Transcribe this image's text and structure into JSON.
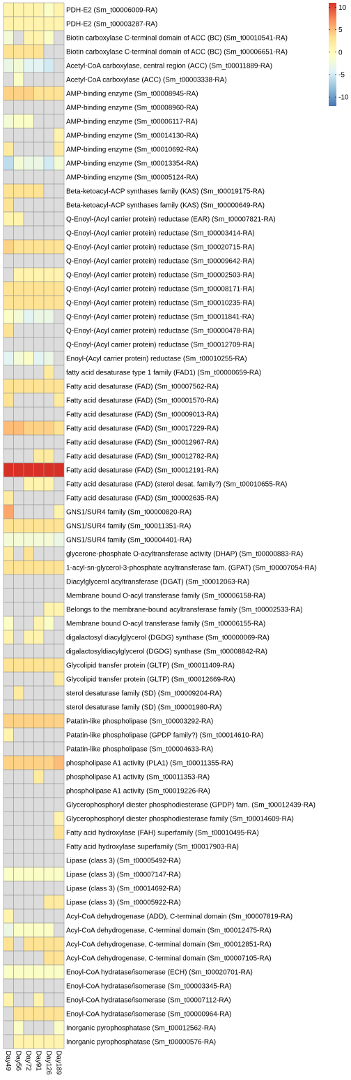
{
  "chart_data": {
    "type": "heatmap",
    "columns": [
      "Day49",
      "Day56",
      "Day72",
      "Day91",
      "Day126",
      "Day189"
    ],
    "rows": [
      "PDH-E2 (Sm_t00006009-RA)",
      "PDH-E2 (Sm_t00003287-RA)",
      "Biotin carboxylase C-terminal domain of ACC (BC) (Sm_t00010541-RA)",
      "Biotin carboxylase C-terminal domain of ACC (BC) (Sm_t00006651-RA)",
      "Acetyl-CoA carboxylase, central region (ACC) (Sm_t00011889-RA)",
      "Acetyl-CoA carboxylase (ACC) (Sm_t00003338-RA)",
      "AMP-binding enzyme (Sm_t00008945-RA)",
      "AMP-binding enzyme (Sm_t00008960-RA)",
      "AMP-binding enzyme (Sm_t00006117-RA)",
      "AMP-binding enzyme (Sm_t00014130-RA)",
      "AMP-binding enzyme (Sm_t00010692-RA)",
      "AMP-binding enzyme (Sm_t00013354-RA)",
      "AMP-binding enzyme (Sm_t00005124-RA)",
      "Beta-ketoacyl-ACP synthases family (KAS) (Sm_t00019175-RA)",
      "Beta-ketoacyl-ACP synthases family (KAS) (Sm_t00000649-RA)",
      "Q-Enoyl-(Acyl carrier protein) reductase (EAR) (Sm_t00007821-RA)",
      "Q-Enoyl-(Acyl carrier protein) reductase (Sm_t00003414-RA)",
      "Q-Enoyl-(Acyl carrier protein) reductase (Sm_t00020715-RA)",
      "Q-Enoyl-(Acyl carrier protein) reductase (Sm_t00009642-RA)",
      "Q-Enoyl-(Acyl carrier protein) reductase (Sm_t00002503-RA)",
      "Q-Enoyl-(Acyl carrier protein) reductase (Sm_t00008171-RA)",
      "Q-Enoyl-(Acyl carrier protein) reductase (Sm_t00010235-RA)",
      "Q-Enoyl-(Acyl carrier protein) reductase (Sm_t00011841-RA)",
      "Q-Enoyl-(Acyl carrier protein) reductase (Sm_t00000478-RA)",
      "Q-Enoyl-(Acyl carrier protein) reductase (Sm_t00012709-RA)",
      "Enoyl-(Acyl carrier protein) reductase (Sm_t00010255-RA)",
      "fatty acid desaturase type 1 family (FAD1) (Sm_t00000659-RA)",
      "Fatty acid desaturase (FAD) (Sm_t00007562-RA)",
      "Fatty acid desaturase (FAD) (Sm_t00001570-RA)",
      "Fatty acid desaturase (FAD) (Sm_t00009013-RA)",
      "Fatty acid desaturase (FAD) (Sm_t00017229-RA)",
      "Fatty acid desaturase (FAD) (Sm_t00012967-RA)",
      "Fatty acid desaturase (FAD) (Sm_t00012782-RA)",
      "Fatty acid desaturase (FAD) (Sm_t00012191-RA)",
      "Fatty acid desaturase (FAD) (sterol desat. family?) (Sm_t00010655-RA)",
      "Fatty acid desaturase (FAD) (Sm_t00002635-RA)",
      "GNS1/SUR4 family (Sm_t00000820-RA)",
      "GNS1/SUR4 family (Sm_t00011351-RA)",
      "GNS1/SUR4 family (Sm_t00004401-RA)",
      "glycerone-phosphate O-acyltransferase activity (DHAP) (Sm_t00000883-RA)",
      "1-acyl-sn-glycerol-3-phosphate acyltransferase fam. (GPAT) (Sm_t00007054-RA)",
      "Diacylglycerol acyltransferase (DGAT) (Sm_t00012063-RA)",
      "Membrane bound O-acyl transferase family (Sm_t00006158-RA)",
      "Belongs to the membrane-bound acyltransferase family (Sm_t00002533-RA)",
      "Membrane bound O-acyl transferase family (Sm_t00006155-RA)",
      "digalactosyl diacylglycerol (DGDG) synthase (Sm_t00000069-RA)",
      "digalactosyldiacylglycerol (DGDG) synthase (Sm_t00008842-RA)",
      "Glycolipid transfer protein (GLTP) (Sm_t00011409-RA)",
      "Glycolipid transfer protein (GLTP) (Sm_t00012669-RA)",
      "sterol desaturase family (SD) (Sm_t00009204-RA)",
      "sterol desaturase family (SD) (Sm_t00001980-RA)",
      "Patatin-like phospholipase (Sm_t00003292-RA)",
      "Patatin-like phospholipase (GPDP family?) (Sm_t00014610-RA)",
      "Patatin-like phospholipase (Sm_t00004633-RA)",
      "phospholipase A1 activity (PLA1) (Sm_t00011355-RA)",
      "phospholipase A1 activity (Sm_t00011353-RA)",
      "phospholipase A1 activity (Sm_t00019226-RA)",
      "Glycerophosphoryl diester phosphodiesterase (GPDP) fam. (Sm_t00012439-RA)",
      "Glycerophosphoryl diester phosphodiesterase family (Sm_t00014609-RA)",
      "Fatty acid hydroxylase (FAH) superfamily (Sm_t00010495-RA)",
      "Fatty acid hydroxylase superfamily (Sm_t00017903-RA)",
      "Lipase (class 3) (Sm_t00005492-RA)",
      "Lipase (class 3) (Sm_t00007147-RA)",
      "Lipase (class 3) (Sm_t00014692-RA)",
      "Lipase (class 3) (Sm_t00005922-RA)",
      "Acyl-CoA dehydrogenase (ADD), C-terminal domain (Sm_t00007819-RA)",
      "Acyl-CoA dehydrogenase, C-terminal domain (Sm_t00012475-RA)",
      "Acyl-CoA dehydrogenase, C-terminal domain (Sm_t00012851-RA)",
      "Acyl-CoA dehydrogenase, C-terminal domain (Sm_t00007105-RA)",
      "Enoyl-CoA hydratase/isomerase (ECH) (Sm_t00020701-RA)",
      "Enoyl-CoA hydratase/isomerase (Sm_t00003345-RA)",
      "Enoyl-CoA hydratase/isomerase (Sm_t00007112-RA)",
      "Enoyl-CoA hydratase/isomerase (Sm_t00000964-RA)",
      "Inorganic pyrophosphatase (Sm_t00012562-RA)",
      "Inorganic pyrophosphatase (Sm_t00000576-RA)"
    ],
    "values": [
      [
        1,
        1,
        1,
        1,
        -1,
        1
      ],
      [
        1,
        1,
        1,
        1,
        1,
        1
      ],
      [
        -2,
        0,
        1,
        1,
        -1,
        0
      ],
      [
        3,
        3,
        3,
        3,
        0,
        0
      ],
      [
        -3,
        -2,
        -4,
        -4,
        -5,
        0
      ],
      [
        0,
        -1,
        0,
        0,
        0,
        0
      ],
      [
        4,
        4,
        4,
        3,
        3,
        3
      ],
      [
        0,
        0,
        0,
        0,
        0,
        0
      ],
      [
        -2,
        -1,
        -1,
        0,
        0,
        0
      ],
      [
        0,
        0,
        0,
        0,
        0,
        1
      ],
      [
        2,
        0,
        0,
        0,
        0,
        2
      ],
      [
        -6,
        -2,
        -3,
        -3,
        -5,
        -2
      ],
      [
        0,
        0,
        0,
        0,
        0,
        0
      ],
      [
        3,
        3,
        3,
        3,
        0,
        0
      ],
      [
        3,
        0,
        0,
        0,
        0,
        0
      ],
      [
        1,
        1,
        0,
        0,
        0,
        0
      ],
      [
        0,
        0,
        0,
        0,
        0,
        0
      ],
      [
        4,
        3,
        3,
        3,
        3,
        3
      ],
      [
        0,
        0,
        0,
        0,
        0,
        0
      ],
      [
        0,
        1,
        1,
        1,
        1,
        1
      ],
      [
        3,
        3,
        3,
        3,
        3,
        3
      ],
      [
        3,
        3,
        3,
        3,
        3,
        3
      ],
      [
        -1,
        -2,
        -4,
        -3,
        -3,
        0
      ],
      [
        3,
        0,
        0,
        0,
        0,
        0
      ],
      [
        0,
        0,
        0,
        0,
        0,
        0
      ],
      [
        -4,
        -2,
        -1,
        -4,
        -3,
        0
      ],
      [
        0,
        0,
        0,
        0,
        2,
        0
      ],
      [
        3,
        3,
        3,
        3,
        3,
        3
      ],
      [
        3,
        0,
        0,
        0,
        0,
        2
      ],
      [
        0,
        0,
        0,
        0,
        0,
        0
      ],
      [
        5,
        5,
        4,
        4,
        4,
        3
      ],
      [
        0,
        0,
        0,
        0,
        0,
        0
      ],
      [
        0,
        0,
        0,
        2,
        2,
        0
      ],
      [
        11,
        11,
        11,
        11,
        11,
        11
      ],
      [
        0,
        0,
        1,
        1,
        1,
        0
      ],
      [
        2,
        0,
        0,
        0,
        0,
        0
      ],
      [
        6,
        0,
        0,
        0,
        0,
        1
      ],
      [
        3,
        3,
        3,
        3,
        3,
        3
      ],
      [
        -2,
        -2,
        -2,
        -2,
        -2,
        -3
      ],
      [
        2,
        0,
        3,
        0,
        0,
        0
      ],
      [
        3,
        3,
        3,
        3,
        3,
        3
      ],
      [
        0,
        0,
        0,
        0,
        0,
        0
      ],
      [
        0,
        0,
        0,
        0,
        0,
        0
      ],
      [
        0,
        0,
        0,
        0,
        1,
        1
      ],
      [
        -1,
        0,
        0,
        1,
        -1,
        0
      ],
      [
        1,
        0,
        1,
        1,
        0,
        0
      ],
      [
        0,
        0,
        0,
        0,
        0,
        0
      ],
      [
        3,
        3,
        3,
        3,
        3,
        3
      ],
      [
        0,
        0,
        0,
        0,
        0,
        2
      ],
      [
        0,
        2,
        0,
        0,
        0,
        0
      ],
      [
        0,
        0,
        0,
        0,
        0,
        0
      ],
      [
        4,
        4,
        4,
        4,
        4,
        4
      ],
      [
        1,
        0,
        0,
        0,
        0,
        0
      ],
      [
        0,
        0,
        0,
        0,
        0,
        0
      ],
      [
        4,
        4,
        4,
        4,
        4,
        5
      ],
      [
        0,
        0,
        0,
        2,
        0,
        0
      ],
      [
        0,
        0,
        0,
        0,
        0,
        0
      ],
      [
        0,
        0,
        0,
        0,
        0,
        0
      ],
      [
        0,
        0,
        0,
        0,
        0,
        1
      ],
      [
        0,
        0,
        0,
        0,
        0,
        3
      ],
      [
        0,
        0,
        0,
        0,
        0,
        0
      ],
      [
        0,
        0,
        0,
        0,
        0,
        0
      ],
      [
        -1,
        -1,
        -1,
        -1,
        -1,
        -1
      ],
      [
        0,
        0,
        0,
        0,
        0,
        0
      ],
      [
        0,
        0,
        0,
        0,
        2,
        2
      ],
      [
        1,
        0,
        0,
        0,
        0,
        0
      ],
      [
        -3,
        -1,
        -1,
        -1,
        -1,
        0
      ],
      [
        3,
        0,
        3,
        3,
        3,
        3
      ],
      [
        0,
        0,
        0,
        0,
        3,
        3
      ],
      [
        -1,
        -1,
        -1,
        -1,
        -1,
        -1
      ],
      [
        0,
        0,
        0,
        0,
        0,
        0
      ],
      [
        1,
        0,
        0,
        1,
        0,
        0
      ],
      [
        0,
        3,
        3,
        3,
        3,
        3
      ],
      [
        0,
        -1,
        0,
        0,
        0,
        -1
      ],
      [
        0,
        1,
        1,
        1,
        1,
        1
      ]
    ],
    "color_scale": {
      "min": -12,
      "max": 11,
      "colors": [
        "#4575b4",
        "#91bfdb",
        "#e0f3f8",
        "#ffffbf",
        "#fee090",
        "#fc8d59",
        "#d73027"
      ],
      "zero_color": "#dcdcdc",
      "ticks": [
        10,
        5,
        0,
        -5,
        -10
      ]
    },
    "grid": true,
    "legend": "top-right"
  }
}
